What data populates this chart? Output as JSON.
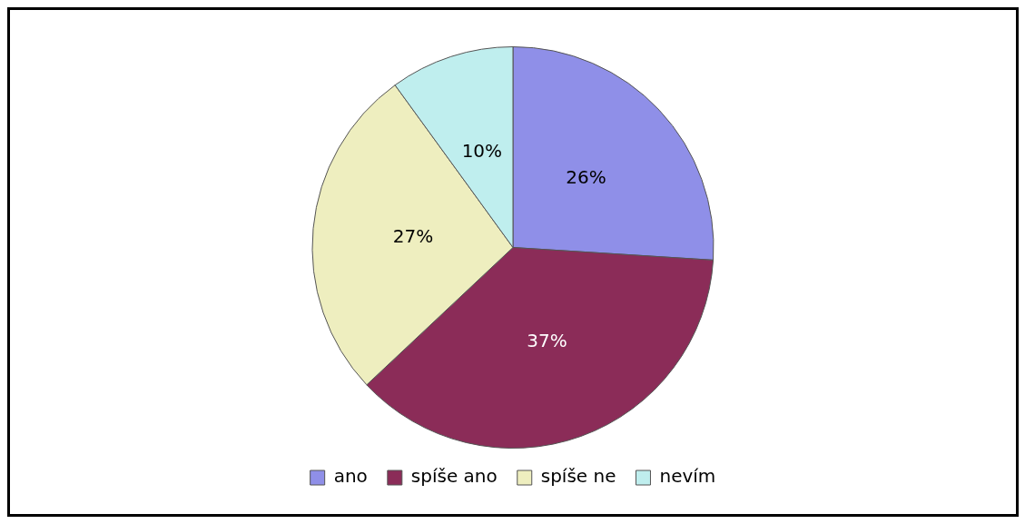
{
  "chart_data": {
    "type": "pie",
    "categories": [
      "ano",
      "spíše ano",
      "spíše ne",
      "nevím"
    ],
    "values": [
      26,
      37,
      27,
      10
    ],
    "colors": [
      "#8f8fe8",
      "#8b2c58",
      "#eeeebf",
      "#bfeeee"
    ],
    "value_labels": [
      "26%",
      "37%",
      "27%",
      "10%"
    ],
    "legend": "bottom"
  }
}
